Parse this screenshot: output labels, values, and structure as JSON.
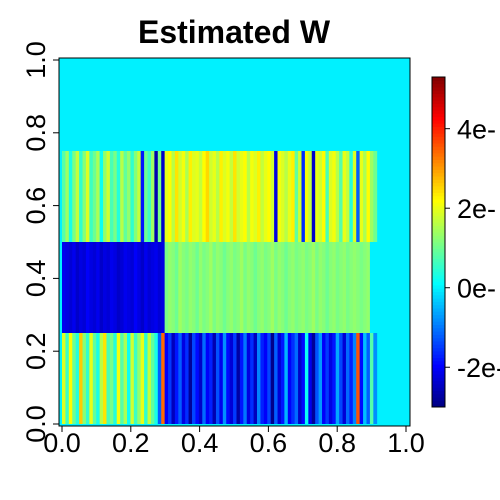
{
  "chart_data": {
    "type": "heatmap",
    "title": "Estimated W",
    "xlabel": "",
    "ylabel": "",
    "xlim": [
      0,
      1
    ],
    "ylim": [
      0,
      1
    ],
    "x_ticks": [
      "0.0",
      "0.2",
      "0.4",
      "0.6",
      "0.8",
      "1.0"
    ],
    "y_ticks": [
      "0.0",
      "0.2",
      "0.4",
      "0.6",
      "0.8",
      "1.0"
    ],
    "colorbar": {
      "palette": "jet",
      "range": [
        -3.0,
        5.3
      ],
      "tick_values": [
        -2,
        0,
        2,
        4
      ],
      "tick_labels": [
        "-2e-",
        "0e-",
        "2e-",
        "4e-"
      ]
    },
    "n_columns": 92,
    "row_bands": [
      {
        "y_from": 0.0,
        "y_to": 0.25,
        "values": [
          1.9,
          0.6,
          2.2,
          1.0,
          0.4,
          2.6,
          1.2,
          0.5,
          2.0,
          0.9,
          0.3,
          1.6,
          2.4,
          0.7,
          1.1,
          0.4,
          2.1,
          0.8,
          1.5,
          0.2,
          1.8,
          0.6,
          1.3,
          2.0,
          0.5,
          1.7,
          0.9,
          0.3,
          -1.2,
          3.4,
          -2.0,
          -1.5,
          -2.5,
          -1.8,
          -1.2,
          -2.2,
          -1.6,
          -2.8,
          -1.4,
          -1.9,
          -2.4,
          -1.1,
          -2.0,
          -1.7,
          -2.6,
          -1.3,
          -2.1,
          -0.8,
          -1.9,
          -2.3,
          -1.5,
          -2.7,
          -1.8,
          -1.0,
          -2.2,
          -1.6,
          -2.5,
          -0.9,
          -1.7,
          -2.0,
          -1.4,
          -2.9,
          -1.2,
          -2.3,
          -1.8,
          -0.5,
          -2.0,
          -1.6,
          -1.1,
          -2.4,
          -1.9,
          0.2,
          -2.1,
          -2.8,
          -1.3,
          -0.7,
          -2.0,
          -1.5,
          -2.2,
          -1.8,
          -0.6,
          -1.4,
          -2.3,
          -1.1,
          -1.7,
          -0.9,
          3.6,
          -1.9,
          -0.4,
          -1.2,
          0.8,
          -0.8
        ]
      },
      {
        "y_from": 0.25,
        "y_to": 0.5,
        "values": [
          -2.1,
          -2.2,
          -2.3,
          -2.1,
          -2.4,
          -2.2,
          -2.3,
          -2.0,
          -2.2,
          -2.3,
          -2.1,
          -2.4,
          -2.2,
          -2.3,
          -2.1,
          -2.2,
          -2.4,
          -2.3,
          -2.1,
          -2.2,
          -2.3,
          -2.0,
          -2.2,
          -2.4,
          -2.1,
          -2.3,
          -2.2,
          -2.1,
          -2.3,
          -2.2,
          1.1,
          1.3,
          1.2,
          1.0,
          1.4,
          1.2,
          1.1,
          1.3,
          1.2,
          1.0,
          1.3,
          1.1,
          1.2,
          1.4,
          1.1,
          1.3,
          1.2,
          1.0,
          1.2,
          1.3,
          1.1,
          1.2,
          1.4,
          1.1,
          1.3,
          1.2,
          1.0,
          1.2,
          1.3,
          1.1,
          1.2,
          1.4,
          1.1,
          1.3,
          1.2,
          1.0,
          1.2,
          1.3,
          1.1,
          1.2,
          1.3,
          1.1,
          1.2,
          1.4,
          1.1,
          1.3,
          1.2,
          1.0,
          1.2,
          1.3,
          1.1,
          1.2,
          1.3,
          1.1,
          1.2,
          1.3,
          1.2,
          1.1,
          1.2,
          1.3,
          0.0,
          0.0
        ]
      },
      {
        "y_from": 0.5,
        "y_to": 0.75,
        "values": [
          0.8,
          1.4,
          0.3,
          1.1,
          1.7,
          0.5,
          1.2,
          1.9,
          0.6,
          1.0,
          1.5,
          0.2,
          1.3,
          1.8,
          0.7,
          1.1,
          0.4,
          1.6,
          0.9,
          1.3,
          0.5,
          1.2,
          1.7,
          -1.8,
          1.0,
          0.6,
          1.4,
          -2.6,
          1.1,
          -2.4,
          2.0,
          2.2,
          1.6,
          2.4,
          1.8,
          2.1,
          1.5,
          2.3,
          1.9,
          2.0,
          1.7,
          2.2,
          2.5,
          1.8,
          2.0,
          1.6,
          2.3,
          1.9,
          2.1,
          1.7,
          2.4,
          1.8,
          2.0,
          2.2,
          1.6,
          2.1,
          1.9,
          2.3,
          1.7,
          2.0,
          2.2,
          1.8,
          -2.2,
          2.1,
          1.9,
          1.6,
          2.0,
          2.3,
          0.9,
          1.8,
          -1.6,
          2.1,
          1.7,
          -2.4,
          2.0,
          1.8,
          2.2,
          0.7,
          1.9,
          2.1,
          1.6,
          0.8,
          2.0,
          1.7,
          0.4,
          1.9,
          -1.2,
          2.0,
          1.5,
          2.2,
          1.4,
          1.0
        ]
      },
      {
        "y_from": 0.75,
        "y_to": 1.0,
        "values": [
          0
        ]
      }
    ]
  }
}
